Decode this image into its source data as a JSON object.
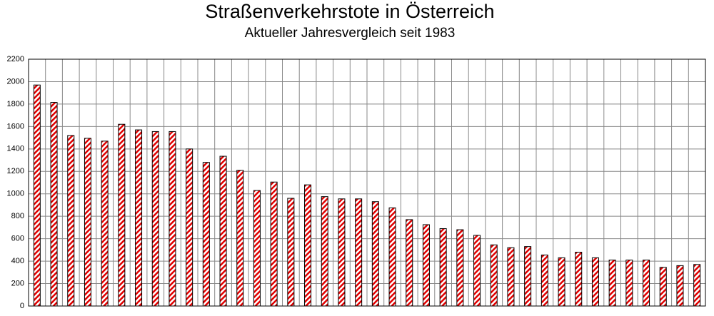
{
  "chart_data": {
    "type": "bar",
    "title": "Straßenverkehrstote in Österreich",
    "subtitle": "Aktueller Jahresvergleich seit 1983",
    "categories": [
      null,
      null,
      null,
      null,
      null,
      null,
      null,
      null,
      null,
      null,
      null,
      null,
      null,
      null,
      null,
      null,
      null,
      null,
      null,
      null,
      null,
      null,
      null,
      null,
      null,
      null,
      null,
      null,
      null,
      null,
      null,
      null,
      null,
      null,
      null,
      null,
      null,
      null,
      null,
      null
    ],
    "values": [
      1970,
      1815,
      1520,
      1495,
      1470,
      1620,
      1570,
      1555,
      1555,
      1400,
      1280,
      1335,
      1210,
      1030,
      1105,
      960,
      1080,
      975,
      955,
      955,
      930,
      875,
      770,
      725,
      690,
      680,
      630,
      545,
      520,
      530,
      455,
      430,
      480,
      430,
      410,
      410,
      410,
      345,
      360,
      370
    ],
    "color": "#e00000",
    "ylim": [
      0,
      2200
    ],
    "yticks": [
      0,
      200,
      400,
      600,
      800,
      1000,
      1200,
      1400,
      1600,
      1800,
      2000,
      2200
    ],
    "grid": true
  }
}
